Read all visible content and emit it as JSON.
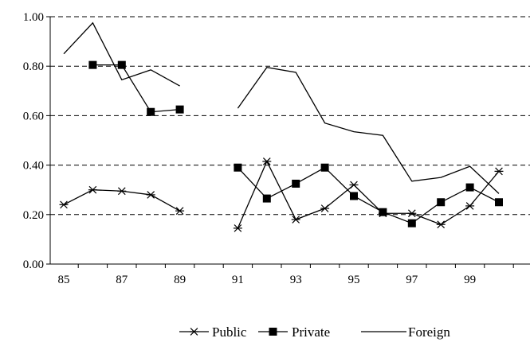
{
  "chart_data": {
    "type": "line",
    "x": [
      "85",
      "86",
      "87",
      "88",
      "89",
      "90",
      "91",
      "92",
      "93",
      "94",
      "95",
      "96",
      "97",
      "98",
      "99",
      "100"
    ],
    "x_tick_labels": [
      "85",
      "87",
      "89",
      "91",
      "93",
      "95",
      "97",
      "99"
    ],
    "y_tick_labels": [
      "0.00",
      "0.20",
      "0.40",
      "0.60",
      "0.80",
      "1.00"
    ],
    "ylim": [
      0,
      1.0
    ],
    "grid": true,
    "legend_position": "bottom",
    "series": [
      {
        "name": "Public",
        "marker": "asterisk",
        "color": "#000000",
        "values": [
          0.24,
          0.3,
          0.295,
          0.28,
          0.215,
          null,
          0.145,
          0.415,
          0.18,
          0.225,
          0.32,
          0.205,
          0.205,
          0.16,
          0.235,
          0.375
        ]
      },
      {
        "name": "Private",
        "marker": "square",
        "color": "#000000",
        "values": [
          null,
          0.805,
          0.805,
          0.615,
          0.625,
          null,
          0.39,
          0.265,
          0.325,
          0.39,
          0.275,
          0.21,
          0.165,
          0.25,
          0.31,
          0.25
        ]
      },
      {
        "name": "Foreign",
        "marker": "none",
        "color": "#000000",
        "values": [
          0.85,
          0.975,
          0.745,
          0.785,
          0.72,
          null,
          0.63,
          0.795,
          0.775,
          0.57,
          0.535,
          0.52,
          0.335,
          0.35,
          0.395,
          0.285
        ]
      }
    ]
  }
}
